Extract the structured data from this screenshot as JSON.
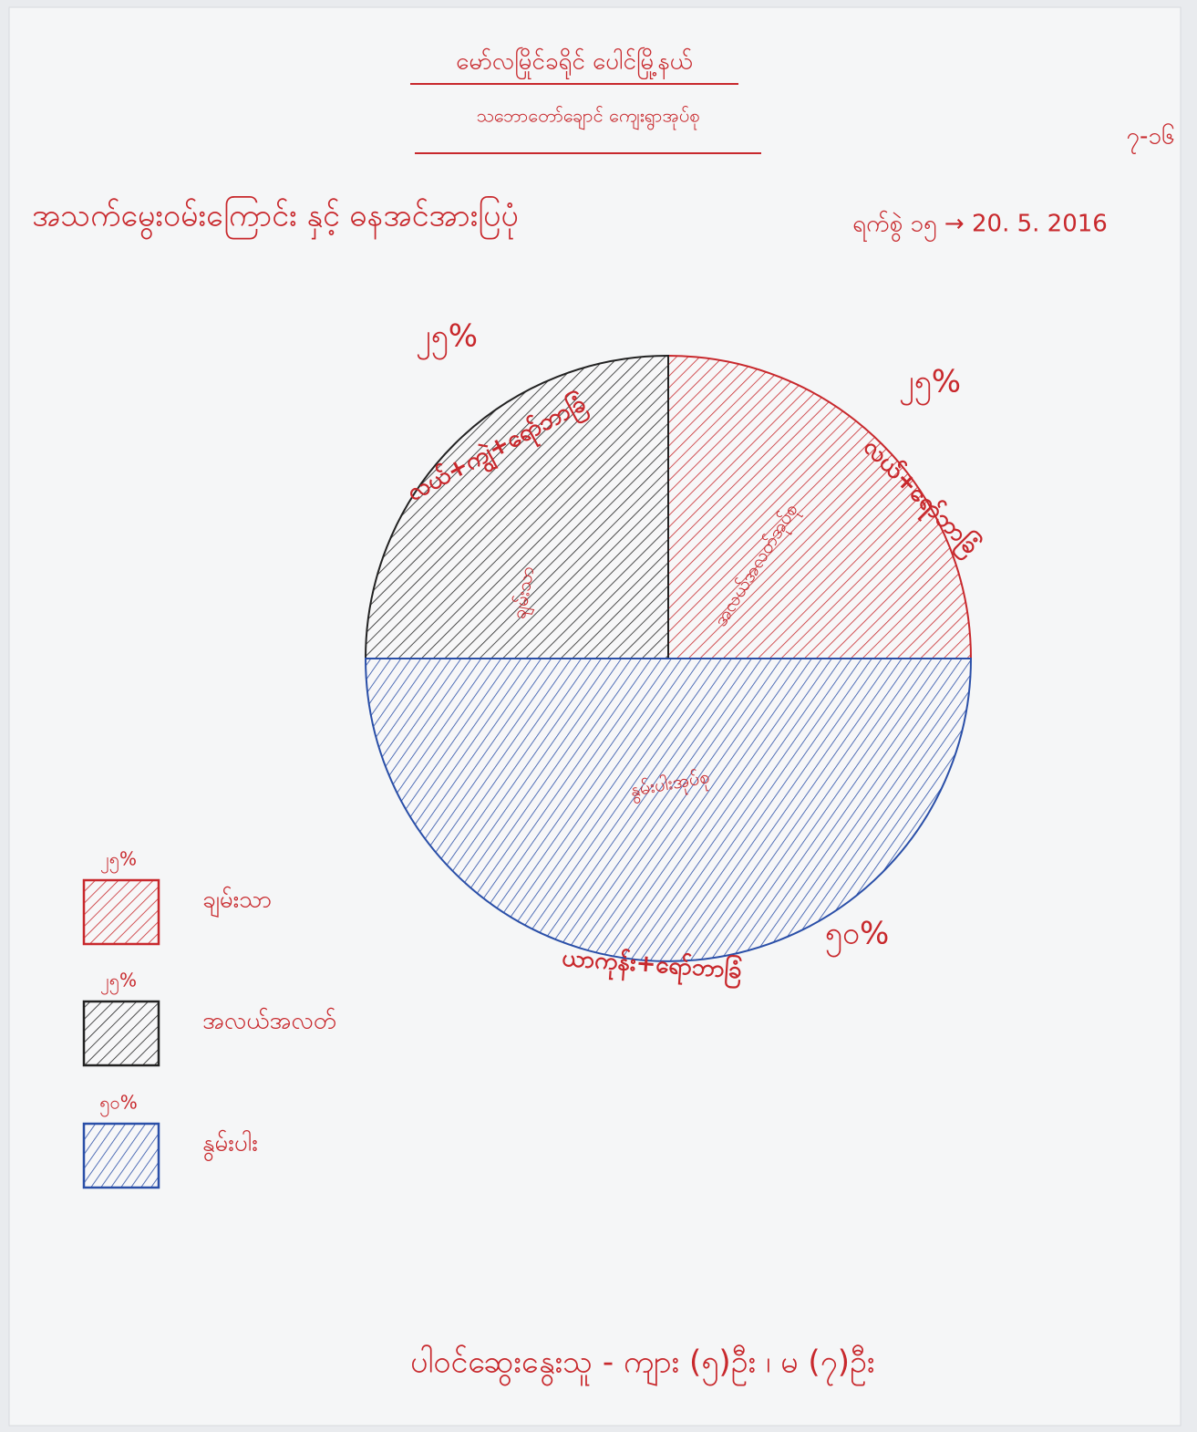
{
  "header": {
    "line1": "မော်လမြိုင်ခရိုင် ပေါင်မြို့နယ်",
    "line2": "သဘောတော်ချောင် ကျေးရွာအုပ်စု",
    "corner": "၇-၁၆"
  },
  "chart_data": {
    "type": "pie",
    "title": "အသက်မွေးဝမ်းကြောင်း နှင့် ဓနအင်အားပြပုံ",
    "date": "ရက်စွဲ ၁၅ → 20. 5. 2016",
    "categories": [
      "ချမ်းသာ",
      "အလယ်အလတ်",
      "နွမ်းပါး"
    ],
    "values": [
      25,
      25,
      50
    ],
    "value_labels": [
      "၂၅%",
      "၂၅%",
      "၅၀%"
    ],
    "colors": [
      "#c8282c",
      "#222222",
      "#2a4fa8"
    ],
    "slice_labels": [
      "အလယ်အလတ်အုပ်စု",
      "ချမ်းသာ",
      "နွမ်းပါးအုပ်စု"
    ],
    "outer_labels": [
      "လယ်+ရော်ဘာခြံ",
      "လယ်+ကျွဲ+ရော်ဘာခြံ",
      "ယာကုန်း+ရော်ဘာခြံ"
    ],
    "legend": true
  },
  "footer": "ပါဝင်ဆွေးနွေးသူ - ကျား (၅)ဦး ၊ မ (၇)ဦး"
}
